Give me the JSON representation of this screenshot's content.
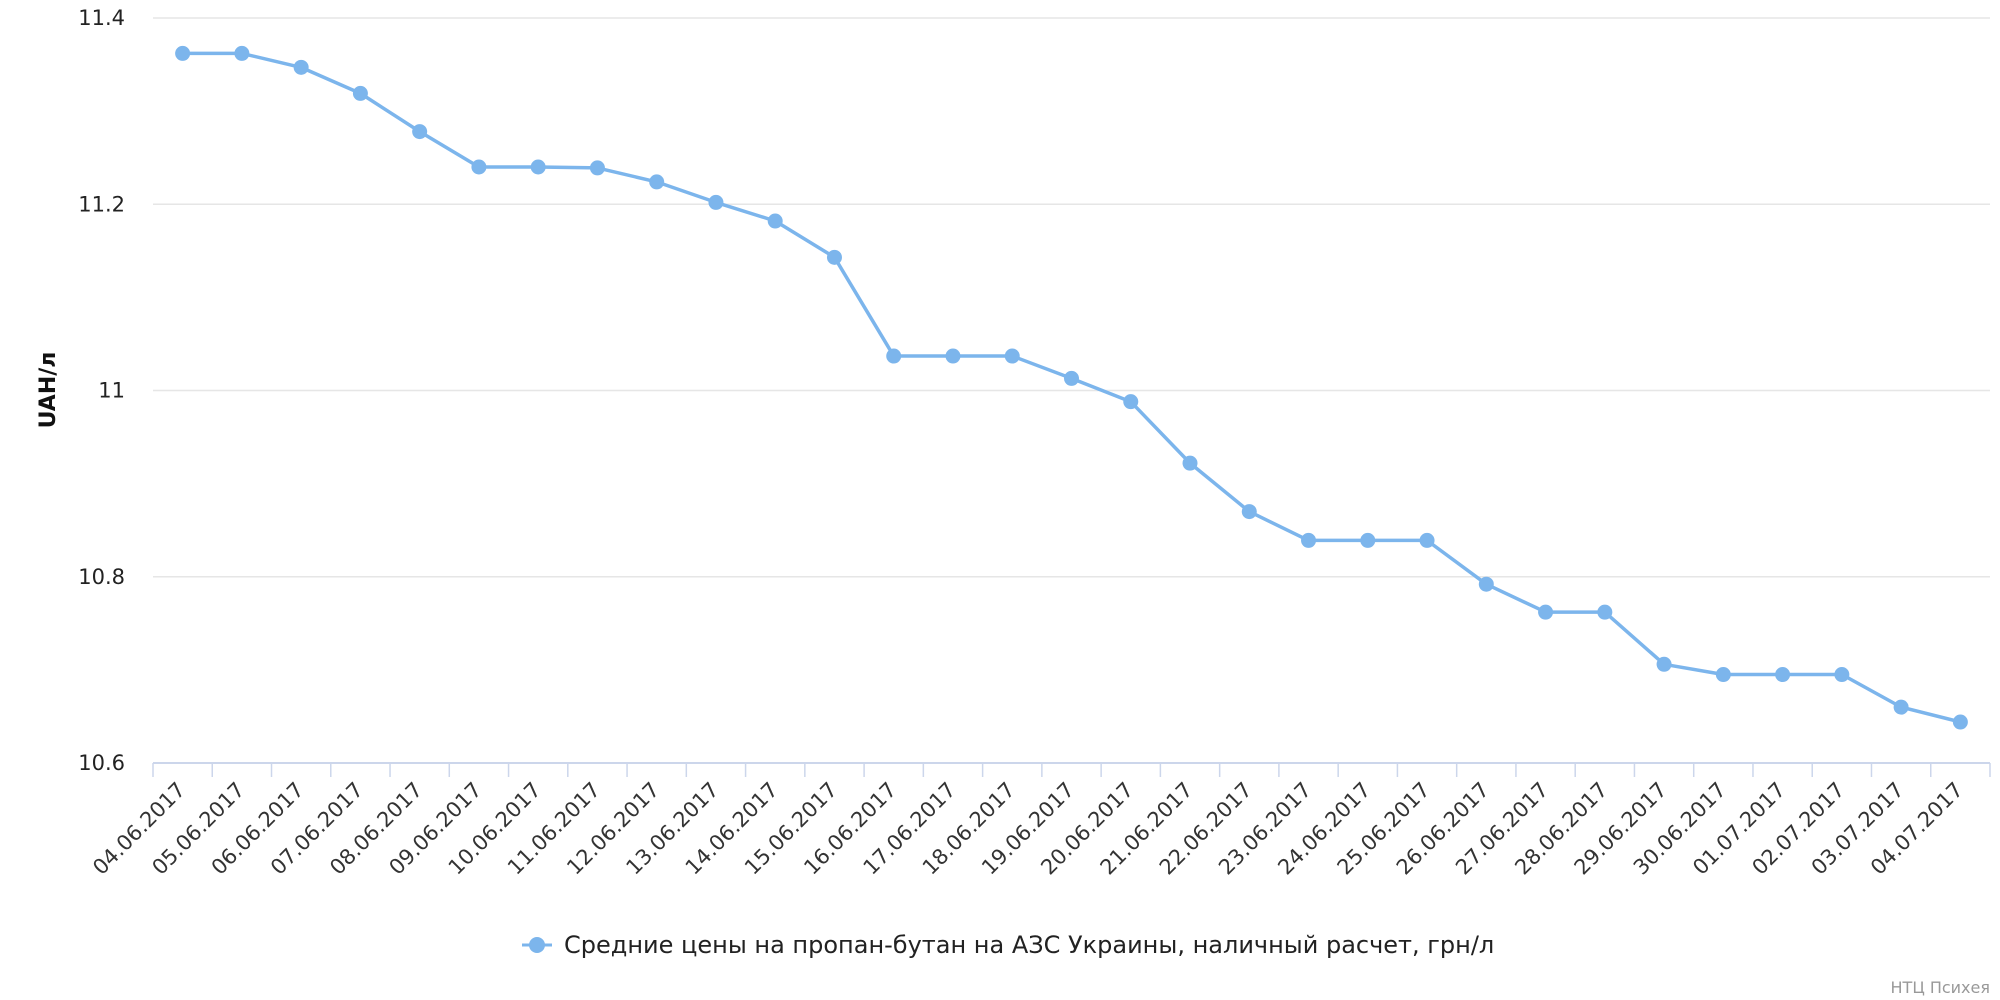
{
  "chart_data": {
    "type": "line",
    "title": "",
    "xlabel": "",
    "ylabel": "UAH/л",
    "ylim": [
      10.6,
      11.4
    ],
    "yticks": [
      10.6,
      10.8,
      11,
      11.2,
      11.4
    ],
    "ytick_labels": [
      "10.6",
      "10.8",
      "11",
      "11.2",
      "11.4"
    ],
    "grid": true,
    "legend_position": "bottom-center",
    "categories": [
      "04.06.2017",
      "05.06.2017",
      "06.06.2017",
      "07.06.2017",
      "08.06.2017",
      "09.06.2017",
      "10.06.2017",
      "11.06.2017",
      "12.06.2017",
      "13.06.2017",
      "14.06.2017",
      "15.06.2017",
      "16.06.2017",
      "17.06.2017",
      "18.06.2017",
      "19.06.2017",
      "20.06.2017",
      "21.06.2017",
      "22.06.2017",
      "23.06.2017",
      "24.06.2017",
      "25.06.2017",
      "26.06.2017",
      "27.06.2017",
      "28.06.2017",
      "29.06.2017",
      "30.06.2017",
      "01.07.2017",
      "02.07.2017",
      "03.07.2017",
      "04.07.2017"
    ],
    "series": [
      {
        "name": "Средние цены на пропан-бутан на АЗС Украины, наличный расчет, грн/л",
        "color": "#7cb5ec",
        "values": [
          11.362,
          11.362,
          11.347,
          11.319,
          11.278,
          11.24,
          11.24,
          11.239,
          11.224,
          11.202,
          11.182,
          11.143,
          11.037,
          11.037,
          11.037,
          11.013,
          10.988,
          10.922,
          10.87,
          10.839,
          10.839,
          10.839,
          10.792,
          10.762,
          10.762,
          10.706,
          10.695,
          10.695,
          10.695,
          10.66,
          10.644
        ]
      }
    ]
  },
  "credit": "НТЦ Психея"
}
